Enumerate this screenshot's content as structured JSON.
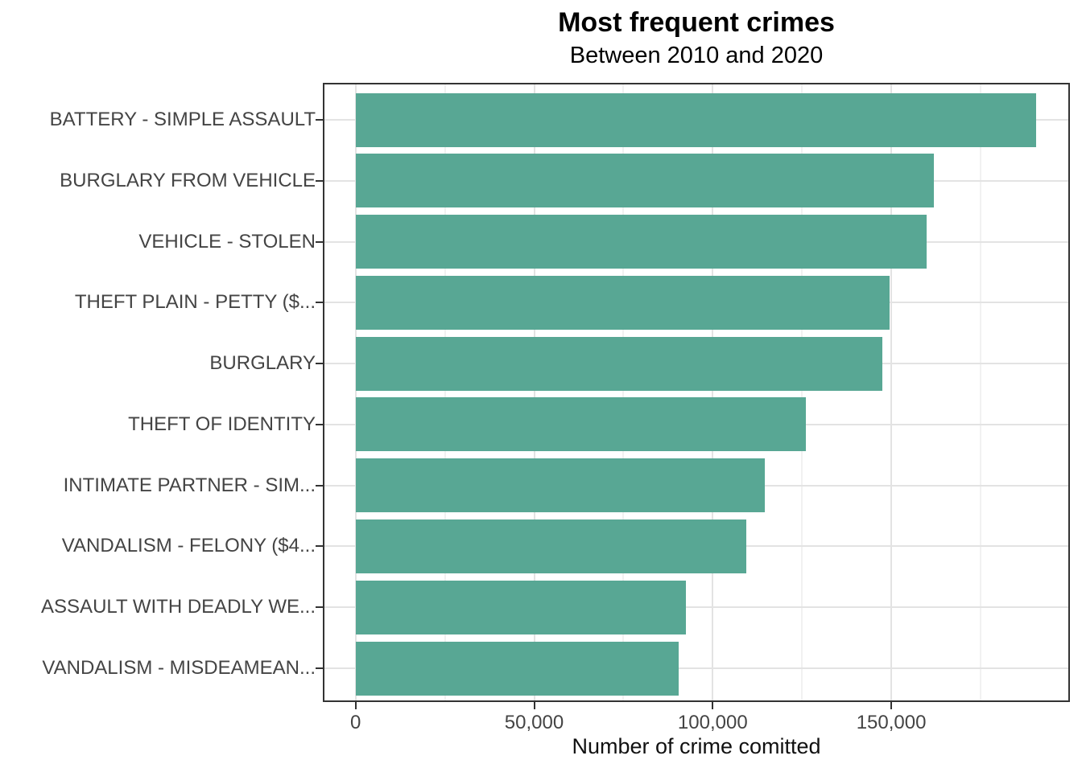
{
  "chart_data": {
    "type": "bar",
    "orientation": "horizontal",
    "title": "Most frequent crimes",
    "subtitle": "Between 2010 and 2020",
    "xlabel": "Number of crime comitted",
    "ylabel": "",
    "legend": "none",
    "grid": "on",
    "categories": [
      "BATTERY - SIMPLE ASSAULT",
      "BURGLARY FROM VEHICLE",
      "VEHICLE - STOLEN",
      "THEFT PLAIN - PETTY ($...",
      "BURGLARY",
      "THEFT OF IDENTITY",
      "INTIMATE PARTNER - SIM...",
      "VANDALISM - FELONY ($4...",
      "ASSAULT WITH DEADLY WE...",
      "VANDALISM - MISDEAMEAN..."
    ],
    "values": [
      190500,
      162000,
      160000,
      149500,
      147500,
      126000,
      114500,
      109500,
      92500,
      90500
    ],
    "x_axis": {
      "min": 0,
      "max": 200000,
      "major_ticks": [
        0,
        50000,
        100000,
        150000
      ],
      "tick_labels": [
        "0",
        "50,000",
        "100,000",
        "150,000"
      ],
      "minor_gridlines": [
        25000,
        75000,
        125000,
        175000
      ]
    },
    "colors": {
      "bar": "#58a794",
      "grid_major": "#e3e3e3",
      "grid_minor": "#f1f1f1",
      "panel_border": "#333333",
      "axis_text": "#444444",
      "axis_title_text": "#111111",
      "title_text": "#000000",
      "background": "#ffffff"
    }
  }
}
